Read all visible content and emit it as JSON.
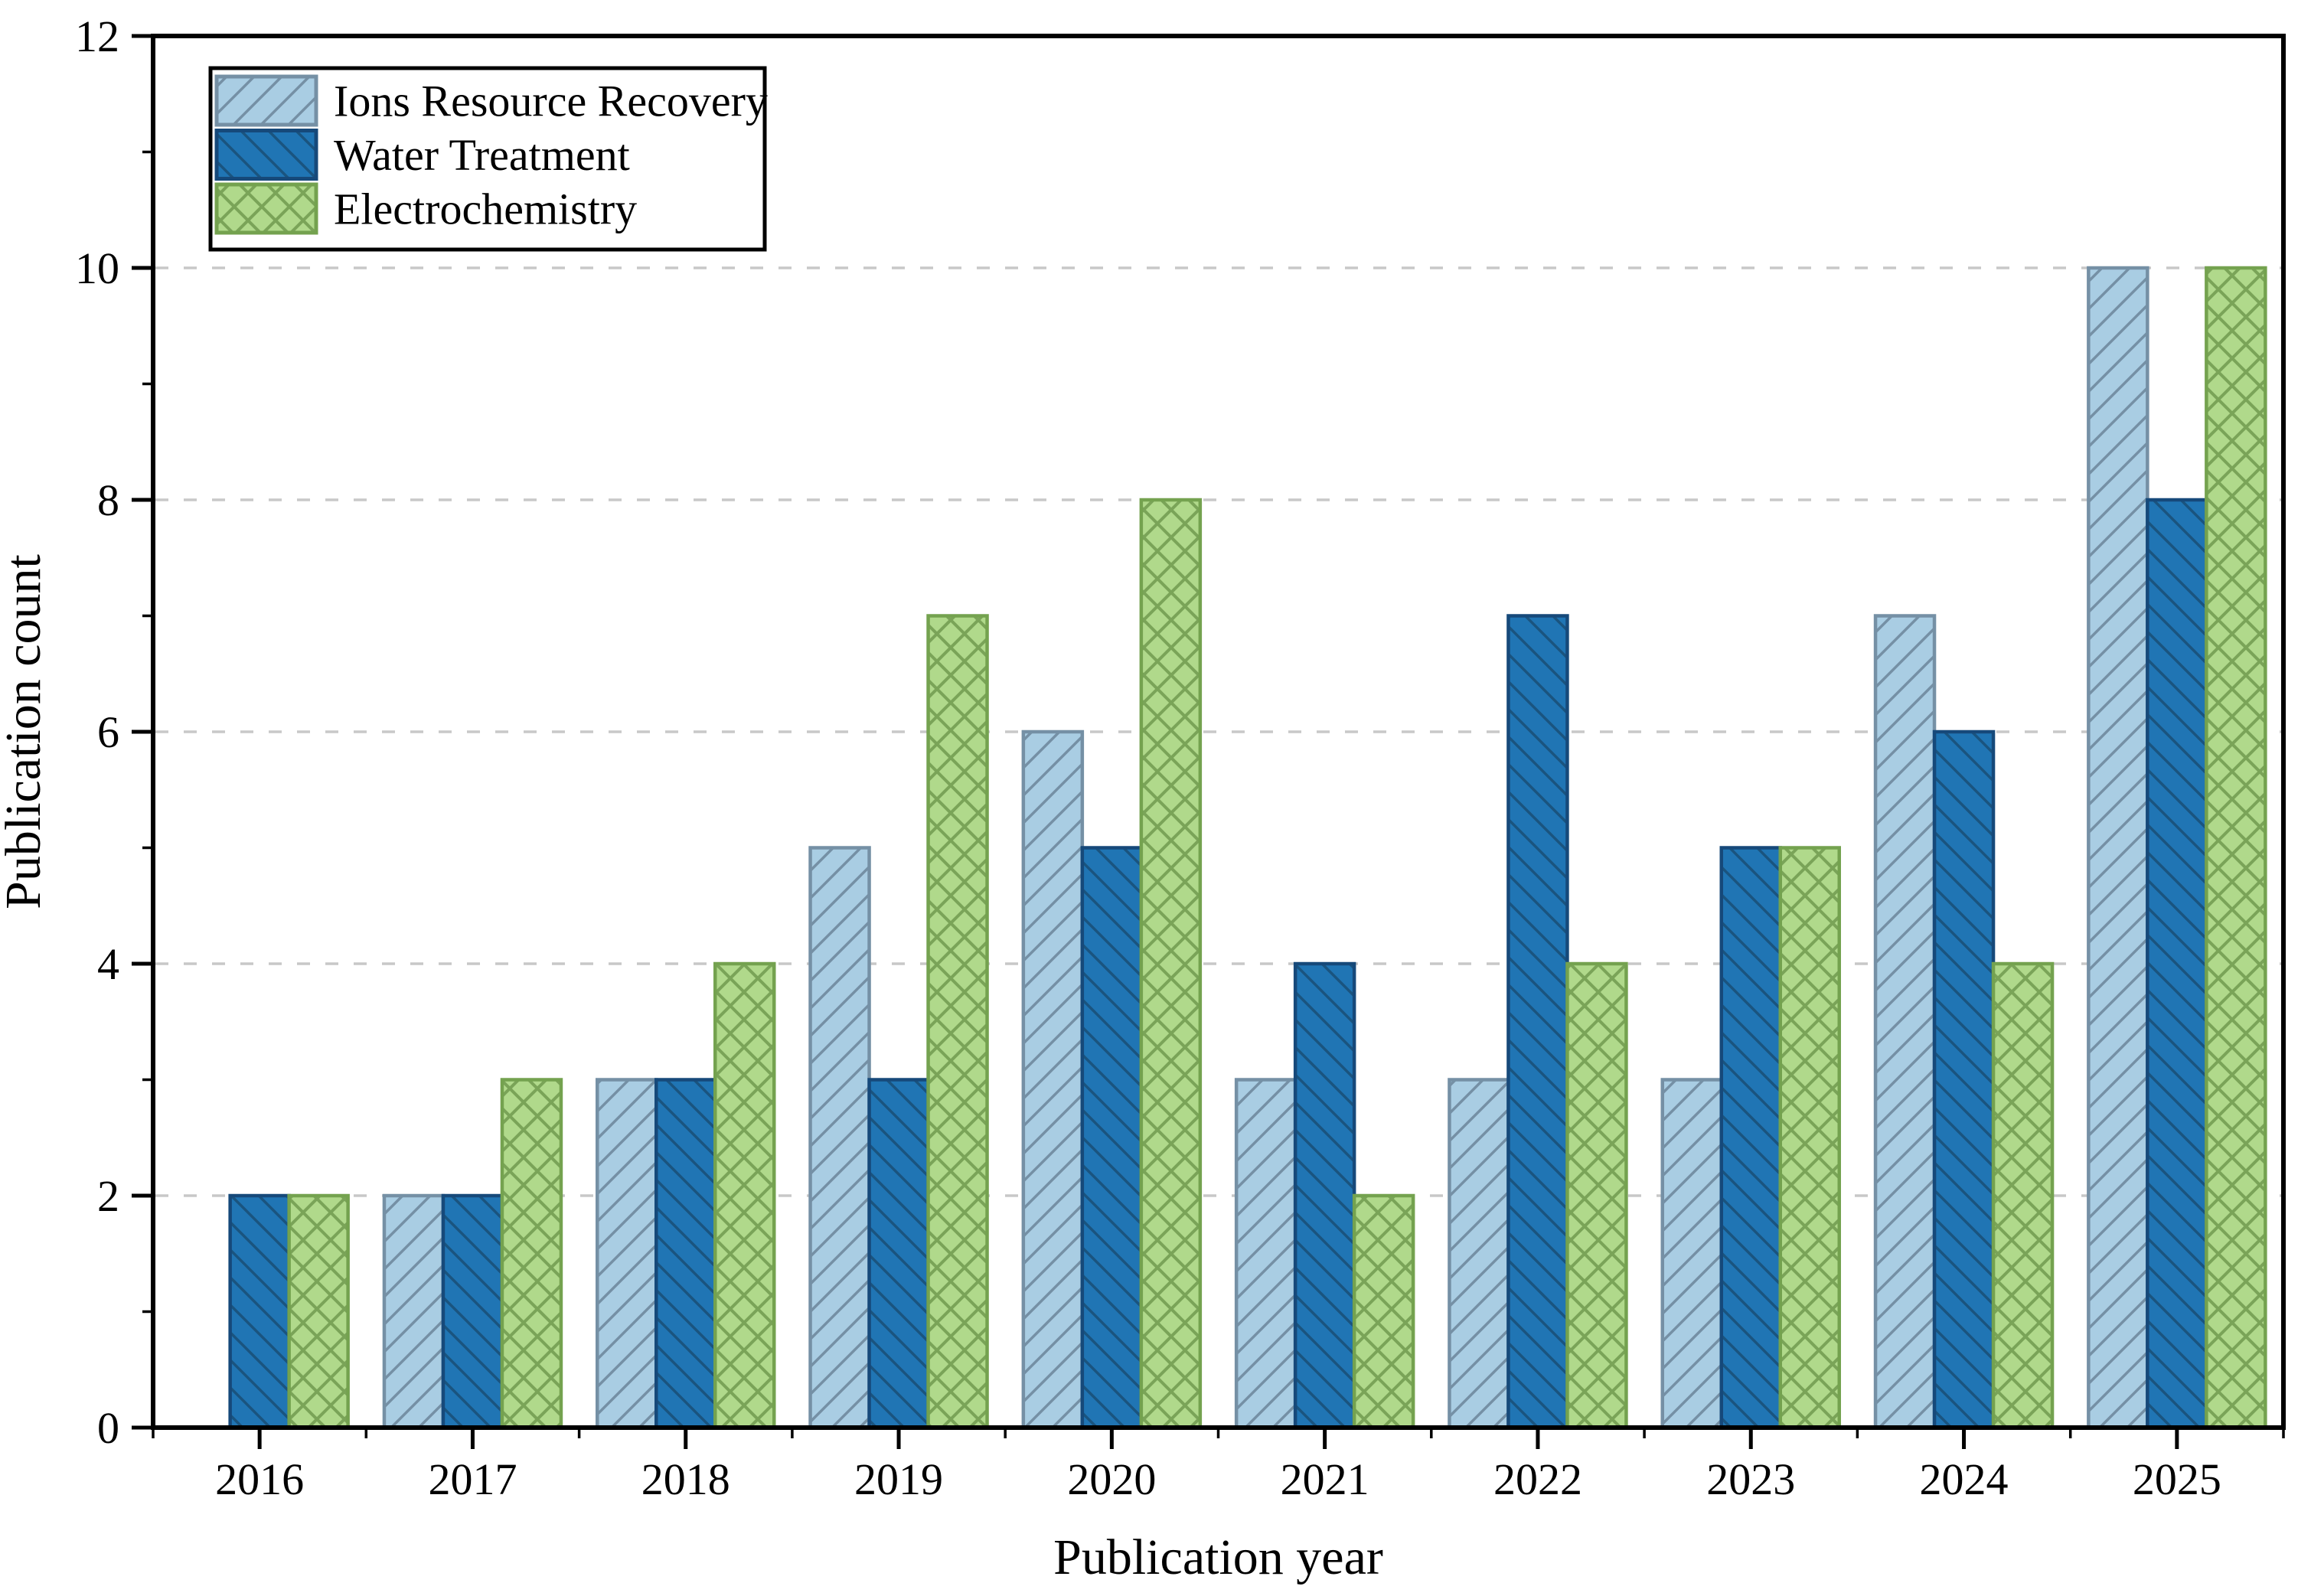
{
  "chart_data": {
    "type": "bar",
    "title": "",
    "xlabel": "Publication year",
    "ylabel": "Publication count",
    "categories": [
      "2016",
      "2017",
      "2018",
      "2019",
      "2020",
      "2021",
      "2022",
      "2023",
      "2024",
      "2025"
    ],
    "series": [
      {
        "name": "Ions Resource Recovery",
        "values": [
          0,
          2,
          3,
          5,
          6,
          3,
          3,
          3,
          7,
          10
        ],
        "fill": "#a9cde3",
        "edge": "#7590a5",
        "hatch": "/",
        "hatch_color": "#7590a5"
      },
      {
        "name": "Water Treatment",
        "values": [
          2,
          2,
          3,
          3,
          5,
          4,
          7,
          5,
          6,
          8
        ],
        "fill": "#2075b4",
        "edge": "#16497a",
        "hatch": "\\",
        "hatch_color": "#1a547f"
      },
      {
        "name": "Electrochemistry",
        "values": [
          2,
          3,
          4,
          7,
          8,
          2,
          4,
          5,
          4,
          10
        ],
        "fill": "#b0d98b",
        "edge": "#74a24f",
        "hatch": "x",
        "hatch_color": "#7aa458"
      }
    ],
    "ylim": [
      0,
      12
    ],
    "yticks": [
      0,
      2,
      4,
      6,
      8,
      10,
      12
    ],
    "grid": "dashed horizontal at even values",
    "gridline_color": "#c8c8c8",
    "axis_color": "#000000",
    "background_color": "#ffffff",
    "legend_position": "top-left",
    "legend_border_color": "#000000"
  }
}
